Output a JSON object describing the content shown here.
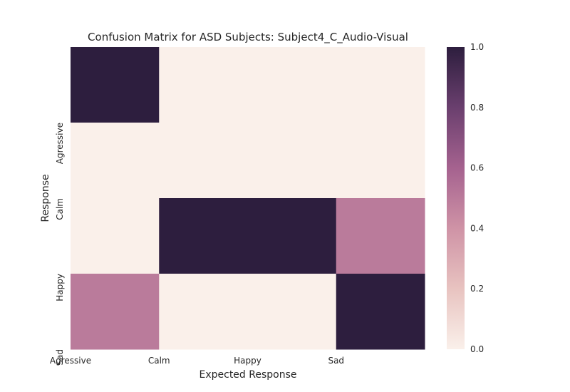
{
  "chart_data": {
    "type": "heatmap",
    "title": "Confusion Matrix for ASD Subjects: Subject4_C_Audio-Visual",
    "xlabel": "Expected Response",
    "ylabel": "Response",
    "x_tick_labels": [
      "Agressive",
      "Calm",
      "Happy",
      "Sad"
    ],
    "y_tick_labels": [
      "Agressive",
      "Calm",
      "Happy",
      "Sad"
    ],
    "values": [
      [
        1.0,
        0.0,
        0.0,
        0.0
      ],
      [
        0.0,
        0.0,
        0.0,
        0.0
      ],
      [
        0.0,
        1.0,
        1.0,
        0.5
      ],
      [
        0.5,
        0.0,
        0.0,
        1.0
      ]
    ],
    "colorbar": {
      "min": 0.0,
      "max": 1.0,
      "tick_labels": [
        "0.0",
        "0.2",
        "0.4",
        "0.6",
        "0.8",
        "1.0"
      ],
      "colors": [
        "#faf0ea",
        "#e8c3c0",
        "#cf93a6",
        "#a5628f",
        "#6a3f6e",
        "#2d1e3e"
      ]
    },
    "grid": false
  }
}
